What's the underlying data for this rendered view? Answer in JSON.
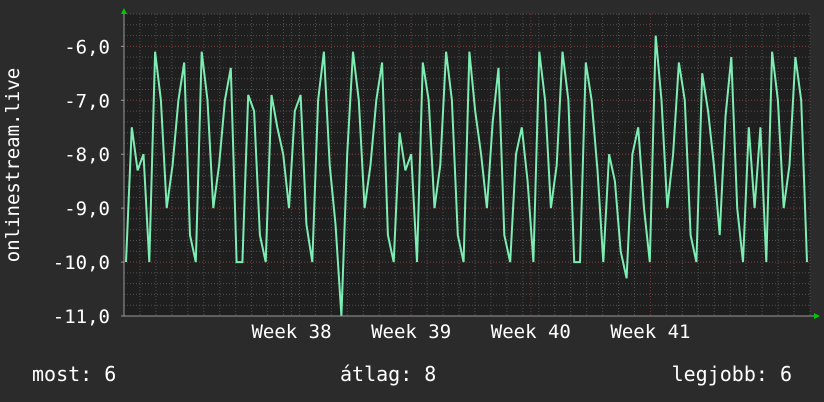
{
  "chart_data": {
    "type": "line",
    "ylabel": "onlinestream.live",
    "ylim": [
      -11.0,
      -5.4
    ],
    "yticks": [
      -11,
      -10,
      -9,
      -8,
      -7,
      -6
    ],
    "ytick_labels": [
      "-11,0",
      "-10,0",
      "-9,0",
      "-8,0",
      "-7,0",
      "-6,0"
    ],
    "xlim": [
      0,
      43
    ],
    "xtick_labels": [
      {
        "label": "Week 38",
        "x": 10.5
      },
      {
        "label": "Week 39",
        "x": 18.0
      },
      {
        "label": "Week 40",
        "x": 25.5
      },
      {
        "label": "Week 41",
        "x": 33.0
      }
    ],
    "grid": true,
    "colors": {
      "background": "#2b2b2b",
      "plot_background": "#1f1f1f",
      "grid_major": "#7a3636",
      "grid_minor": "#505050",
      "line": "#7dedb3",
      "axis_arrow": "#00c800",
      "text": "#ffffff"
    },
    "series": [
      {
        "values": [
          -10.0,
          -7.5,
          -8.3,
          -8.0,
          -10.0,
          -6.1,
          -7.0,
          -9.0,
          -8.2,
          -7.0,
          -6.3,
          -9.5,
          -10.0,
          -6.1,
          -7.0,
          -9.0,
          -8.2,
          -7.0,
          -6.4,
          -10.0,
          -10.0,
          -6.9,
          -7.2,
          -9.5,
          -10.0,
          -6.9,
          -7.5,
          -8.0,
          -9.0,
          -7.2,
          -6.9,
          -9.3,
          -10.0,
          -7.0,
          -6.1,
          -8.2,
          -9.3,
          -11.0,
          -8.0,
          -6.1,
          -7.0,
          -9.0,
          -8.2,
          -7.0,
          -6.3,
          -9.5,
          -10.0,
          -7.6,
          -8.3,
          -8.0,
          -10.0,
          -6.3,
          -7.0,
          -9.0,
          -8.2,
          -6.1,
          -7.0,
          -9.5,
          -10.0,
          -6.1,
          -7.2,
          -8.0,
          -9.0,
          -7.4,
          -6.4,
          -9.5,
          -10.0,
          -8.0,
          -7.5,
          -8.5,
          -10.0,
          -6.1,
          -7.0,
          -9.0,
          -8.2,
          -6.1,
          -7.0,
          -10.0,
          -10.0,
          -6.3,
          -7.0,
          -8.3,
          -10.0,
          -8.0,
          -8.5,
          -9.8,
          -10.3,
          -8.0,
          -7.5,
          -9.0,
          -10.0,
          -5.8,
          -7.0,
          -9.0,
          -8.0,
          -6.3,
          -7.0,
          -9.5,
          -10.0,
          -6.5,
          -7.2,
          -8.2,
          -9.5,
          -7.3,
          -6.2,
          -9.0,
          -10.0,
          -7.5,
          -9.0,
          -7.5,
          -10.0,
          -6.1,
          -7.0,
          -9.0,
          -8.2,
          -6.2,
          -7.0,
          -10.0
        ]
      }
    ]
  },
  "footer": {
    "current": "most: 6",
    "average": "átlag: 8",
    "best": "legjobb: 6"
  }
}
